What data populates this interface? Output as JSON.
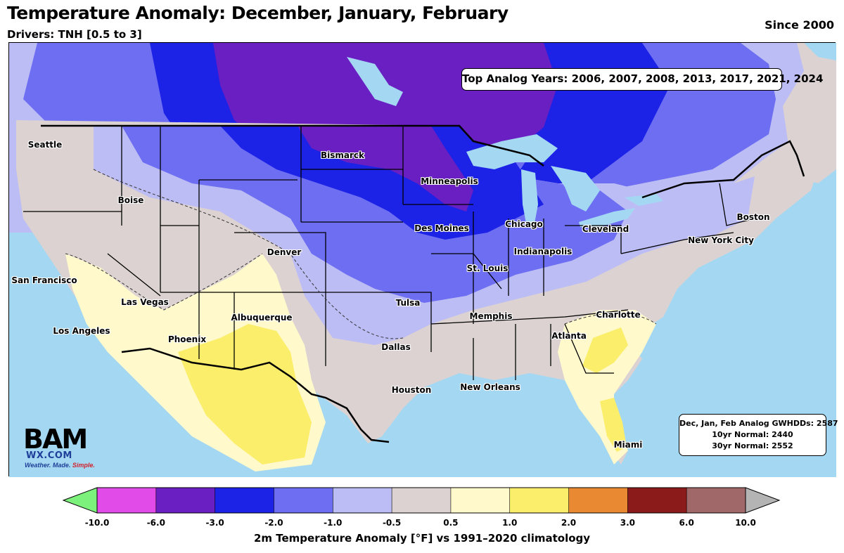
{
  "title": "Temperature Anomaly: December, January, February",
  "subtitle": "Drivers: TNH [0.5 to 3]",
  "since_label": "Since 2000",
  "analog_years_label": "Top Analog Years: 2006, 2007, 2008, 2013, 2017, 2021, 2024",
  "gwhdd": {
    "line1": "Dec, Jan, Feb Analog GWHDDs: 2587",
    "line2": "10yr Normal: 2440",
    "line3": "30yr Normal: 2552"
  },
  "logo": {
    "bam": "BAM",
    "wx": "WX.COM",
    "tag_part1": "Weather. Made. ",
    "tag_part2": "Simple."
  },
  "cities": [
    {
      "name": "Seattle"
    },
    {
      "name": "Boise"
    },
    {
      "name": "Bismarck"
    },
    {
      "name": "Minneapolis"
    },
    {
      "name": "Des Moines"
    },
    {
      "name": "Chicago"
    },
    {
      "name": "Cleveland"
    },
    {
      "name": "Boston"
    },
    {
      "name": "New York City"
    },
    {
      "name": "Indianapolis"
    },
    {
      "name": "Denver"
    },
    {
      "name": "San Francisco"
    },
    {
      "name": "Las Vegas"
    },
    {
      "name": "St. Louis"
    },
    {
      "name": "Tulsa"
    },
    {
      "name": "Memphis"
    },
    {
      "name": "Charlotte"
    },
    {
      "name": "Albuquerque"
    },
    {
      "name": "Los Angeles"
    },
    {
      "name": "Phoenix"
    },
    {
      "name": "Atlanta"
    },
    {
      "name": "Dallas"
    },
    {
      "name": "Houston"
    },
    {
      "name": "New Orleans"
    },
    {
      "name": "Miami"
    }
  ],
  "colorbar": {
    "label": "2m Temperature Anomaly [°F] vs 1991–2020 climatology",
    "ticks": [
      "-10.0",
      "-6.0",
      "-3.0",
      "-2.0",
      "-1.0",
      "-0.5",
      "0.5",
      "1.0",
      "2.0",
      "3.0",
      "6.0",
      "10.0"
    ],
    "under_color": "#7cf27c",
    "over_color": "#b4b4b4",
    "colors": [
      "#e14ce8",
      "#6a1fc2",
      "#1c22e6",
      "#6d6ef2",
      "#bdbdf6",
      "#dcd2d2",
      "#fff9cc",
      "#fbee6a",
      "#e98a33",
      "#8b1a1a",
      "#a06868"
    ]
  },
  "colors": {
    "ocean": "#a4d8f2",
    "lakes": "#a4d8f2"
  }
}
